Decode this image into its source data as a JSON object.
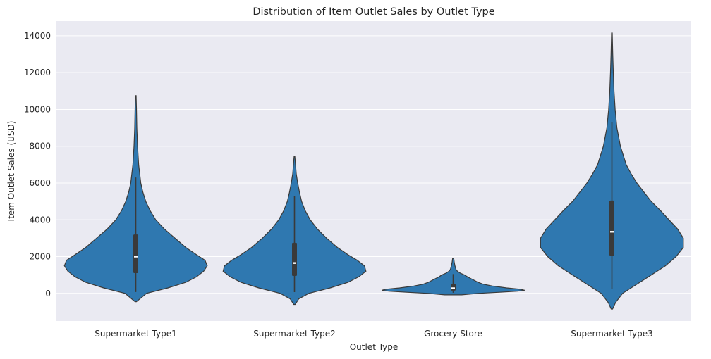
{
  "chart_data": {
    "type": "violin",
    "title": "Distribution of Item Outlet Sales by Outlet Type",
    "xlabel": "Outlet Type",
    "ylabel": "Item Outlet Sales (USD)",
    "ylim": [
      -1500,
      14800
    ],
    "yticks": [
      0,
      2000,
      4000,
      6000,
      8000,
      10000,
      12000,
      14000
    ],
    "grid": true,
    "colors": {
      "background": "#eaeaf2",
      "violin": "#2f78b0",
      "edge": "#3a3a3a",
      "grid": "#ffffff"
    },
    "categories": [
      "Supermarket Type1",
      "Supermarket Type2",
      "Grocery Store",
      "Supermarket Type3"
    ],
    "series": [
      {
        "category": "Supermarket Type1",
        "min": 73,
        "max": 10256,
        "q1": 1100,
        "median": 2000,
        "q3": 3200,
        "whisker_low": 73,
        "whisker_high": 6300,
        "kde_low": -450,
        "kde_high": 10750,
        "density": [
          [
            -450,
            0.01
          ],
          [
            0,
            0.15
          ],
          [
            300,
            0.45
          ],
          [
            600,
            0.7
          ],
          [
            900,
            0.85
          ],
          [
            1200,
            0.95
          ],
          [
            1500,
            1.0
          ],
          [
            1800,
            0.97
          ],
          [
            2100,
            0.85
          ],
          [
            2500,
            0.7
          ],
          [
            3000,
            0.55
          ],
          [
            3500,
            0.4
          ],
          [
            4000,
            0.28
          ],
          [
            4500,
            0.2
          ],
          [
            5000,
            0.14
          ],
          [
            5500,
            0.1
          ],
          [
            6000,
            0.07
          ],
          [
            7000,
            0.04
          ],
          [
            8000,
            0.025
          ],
          [
            9000,
            0.015
          ],
          [
            10000,
            0.01
          ],
          [
            10750,
            0.005
          ]
        ]
      },
      {
        "category": "Supermarket Type2",
        "min": 69,
        "max": 6768,
        "q1": 950,
        "median": 1650,
        "q3": 2750,
        "whisker_low": 69,
        "whisker_high": 5300,
        "kde_low": -600,
        "kde_high": 7450,
        "density": [
          [
            -600,
            0.01
          ],
          [
            -300,
            0.06
          ],
          [
            0,
            0.2
          ],
          [
            300,
            0.5
          ],
          [
            600,
            0.75
          ],
          [
            900,
            0.9
          ],
          [
            1200,
            1.0
          ],
          [
            1500,
            0.98
          ],
          [
            1800,
            0.88
          ],
          [
            2100,
            0.75
          ],
          [
            2500,
            0.6
          ],
          [
            3000,
            0.45
          ],
          [
            3500,
            0.32
          ],
          [
            4000,
            0.22
          ],
          [
            4500,
            0.15
          ],
          [
            5000,
            0.1
          ],
          [
            5500,
            0.07
          ],
          [
            6000,
            0.045
          ],
          [
            6500,
            0.025
          ],
          [
            7000,
            0.015
          ],
          [
            7450,
            0.005
          ]
        ]
      },
      {
        "category": "Grocery Store",
        "min": 33,
        "max": 1775,
        "q1": 150,
        "median": 280,
        "q3": 520,
        "whisker_low": 33,
        "whisker_high": 1050,
        "kde_low": -80,
        "kde_high": 1900,
        "density": [
          [
            -80,
            0.12
          ],
          [
            0,
            0.35
          ],
          [
            60,
            0.65
          ],
          [
            120,
            0.9
          ],
          [
            170,
            1.0
          ],
          [
            220,
            0.95
          ],
          [
            300,
            0.75
          ],
          [
            400,
            0.55
          ],
          [
            500,
            0.42
          ],
          [
            600,
            0.35
          ],
          [
            700,
            0.3
          ],
          [
            800,
            0.25
          ],
          [
            900,
            0.2
          ],
          [
            1000,
            0.16
          ],
          [
            1100,
            0.1
          ],
          [
            1200,
            0.06
          ],
          [
            1300,
            0.04
          ],
          [
            1500,
            0.025
          ],
          [
            1700,
            0.015
          ],
          [
            1900,
            0.008
          ]
        ]
      },
      {
        "category": "Supermarket Type3",
        "min": 241,
        "max": 13086,
        "q1": 2050,
        "median": 3350,
        "q3": 5050,
        "whisker_low": 241,
        "whisker_high": 9300,
        "kde_low": -850,
        "kde_high": 14150,
        "density": [
          [
            -850,
            0.01
          ],
          [
            -500,
            0.05
          ],
          [
            0,
            0.15
          ],
          [
            500,
            0.35
          ],
          [
            1000,
            0.55
          ],
          [
            1500,
            0.75
          ],
          [
            2000,
            0.9
          ],
          [
            2500,
            1.0
          ],
          [
            3000,
            1.0
          ],
          [
            3500,
            0.92
          ],
          [
            4000,
            0.8
          ],
          [
            4500,
            0.68
          ],
          [
            5000,
            0.55
          ],
          [
            5500,
            0.45
          ],
          [
            6000,
            0.35
          ],
          [
            6500,
            0.27
          ],
          [
            7000,
            0.2
          ],
          [
            8000,
            0.12
          ],
          [
            9000,
            0.07
          ],
          [
            10000,
            0.045
          ],
          [
            11000,
            0.03
          ],
          [
            12000,
            0.02
          ],
          [
            13000,
            0.012
          ],
          [
            14150,
            0.005
          ]
        ]
      }
    ]
  }
}
